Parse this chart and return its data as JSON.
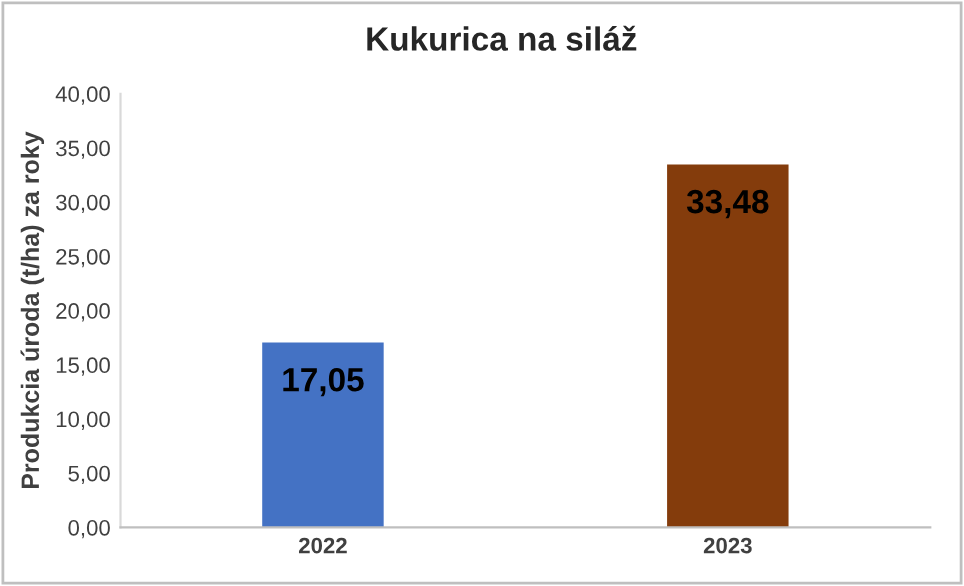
{
  "chart_data": {
    "type": "bar",
    "title": "Kukurica na siláž",
    "ylabel": "Produkcia úroda (t/ha) za roky",
    "categories": [
      "2022",
      "2023"
    ],
    "values": [
      17.05,
      33.48
    ],
    "colors": [
      "#4472c4",
      "#843c0c"
    ],
    "value_labels": [
      "17,05",
      "33,48"
    ],
    "ylim": [
      0,
      40
    ],
    "yticks": [
      {
        "value": 0,
        "label": "0,00"
      },
      {
        "value": 5,
        "label": "5,00"
      },
      {
        "value": 10,
        "label": "10,00"
      },
      {
        "value": 15,
        "label": "15,00"
      },
      {
        "value": 20,
        "label": "20,00"
      },
      {
        "value": 25,
        "label": "25,00"
      },
      {
        "value": 30,
        "label": "30,00"
      },
      {
        "value": 35,
        "label": "35,00"
      },
      {
        "value": 40,
        "label": "40,00"
      }
    ],
    "grid": false,
    "legend": false
  }
}
